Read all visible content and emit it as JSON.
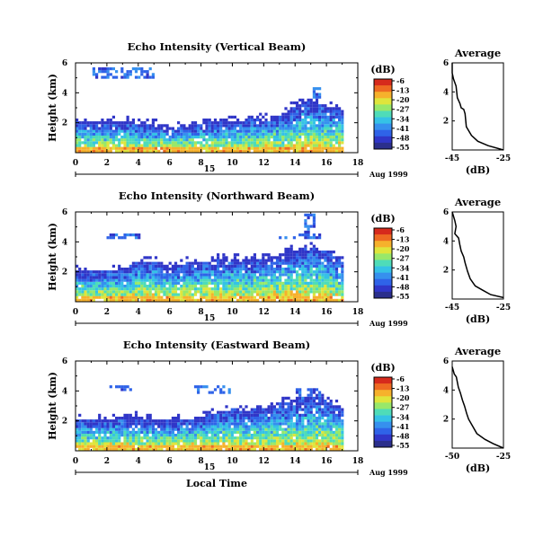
{
  "labels": {
    "ylabel": "Height (km)",
    "xlabel": "Local Time",
    "date_label": "Aug 1999",
    "day_marker": "15",
    "colorbar_unit": "(dB)",
    "avg_title": "Average",
    "avg_xlabel": "(dB)"
  },
  "colorbar": {
    "ticks": [
      "-6",
      "-13",
      "-20",
      "-27",
      "-34",
      "-41",
      "-48",
      "-55"
    ],
    "colors": [
      "#2b2f8c",
      "#3036c8",
      "#2f63e8",
      "#3690ee",
      "#35c2e6",
      "#4fdcb8",
      "#98e86a",
      "#dfe53c",
      "#f6b12c",
      "#ee6a22",
      "#d62a1c"
    ]
  },
  "chart_data": [
    {
      "type": "heatmap",
      "title": "Echo Intensity (Vertical Beam)",
      "xlabel": "",
      "ylabel": "Height (km)",
      "xlim": [
        0,
        18
      ],
      "ylim": [
        0,
        6
      ],
      "xticks": [
        "0",
        "2",
        "4",
        "6",
        "8",
        "10",
        "12",
        "14",
        "16",
        "18"
      ],
      "yticks": [
        "2",
        "4",
        "6"
      ],
      "x_end": 17,
      "layer_top": [
        2.0,
        1.9,
        1.9,
        2.0,
        1.85,
        1.75,
        1.7,
        1.7,
        1.9,
        1.9,
        2.0,
        2.1,
        2.2,
        2.45,
        3.1,
        3.4,
        3.0,
        2.8
      ],
      "upper_patches": [
        [
          1.0,
          5.0,
          4.8,
          5.7
        ],
        [
          3.2,
          4.6,
          5.2,
          5.7
        ],
        [
          14.2,
          15.4,
          2.3,
          3.1
        ],
        [
          15.0,
          15.6,
          3.6,
          4.3
        ]
      ],
      "cbar_range": [
        -55,
        -6
      ],
      "avg_profile": {
        "title": "Average",
        "xlabel": "(dB)",
        "xlim": [
          -45,
          -25
        ],
        "xticks": [
          "-45",
          "-25"
        ],
        "yticks": [
          "2",
          "4",
          "6"
        ],
        "x": [
          -45,
          -45,
          -44.5,
          -43.5,
          -43,
          -42,
          -41.5,
          -40.5,
          -40,
          -39.5,
          -37.5,
          -35,
          -31,
          -25
        ],
        "y": [
          6.0,
          5.3,
          4.9,
          4.4,
          3.6,
          3.2,
          2.9,
          2.8,
          2.5,
          1.6,
          1.0,
          0.6,
          0.3,
          0.0
        ]
      }
    },
    {
      "type": "heatmap",
      "title": "Echo Intensity (Northward Beam)",
      "xlabel": "",
      "ylabel": "Height (km)",
      "xlim": [
        0,
        18
      ],
      "ylim": [
        0,
        6
      ],
      "xticks": [
        "0",
        "2",
        "4",
        "6",
        "8",
        "10",
        "12",
        "14",
        "16",
        "18"
      ],
      "yticks": [
        "2",
        "4",
        "6"
      ],
      "x_end": 17,
      "layer_top": [
        2.0,
        1.9,
        2.0,
        2.1,
        2.6,
        2.6,
        2.2,
        2.5,
        2.6,
        2.7,
        2.8,
        2.7,
        2.8,
        3.0,
        3.4,
        3.6,
        3.2,
        2.6
      ],
      "upper_patches": [
        [
          1.8,
          4.0,
          4.1,
          4.4
        ],
        [
          12.8,
          15.8,
          4.0,
          4.5
        ],
        [
          14.4,
          15.2,
          4.3,
          5.8
        ]
      ],
      "cbar_range": [
        -55,
        -6
      ],
      "avg_profile": {
        "title": "Average",
        "xlabel": "(dB)",
        "xlim": [
          -45,
          -25
        ],
        "xticks": [
          "-45",
          "-25"
        ],
        "yticks": [
          "2",
          "4",
          "6"
        ],
        "x": [
          -45,
          -44,
          -43.5,
          -44,
          -42.5,
          -42,
          -41.5,
          -40.5,
          -40,
          -39,
          -38,
          -36,
          -33,
          -30,
          -25
        ],
        "y": [
          6.0,
          5.4,
          5.0,
          4.5,
          4.2,
          3.7,
          3.3,
          2.9,
          2.5,
          1.9,
          1.4,
          0.9,
          0.6,
          0.3,
          0.1
        ]
      }
    },
    {
      "type": "heatmap",
      "title": "Echo Intensity (Eastward Beam)",
      "xlabel": "Local Time",
      "ylabel": "Height (km)",
      "xlim": [
        0,
        18
      ],
      "ylim": [
        0,
        6
      ],
      "xticks": [
        "0",
        "2",
        "4",
        "6",
        "8",
        "10",
        "12",
        "14",
        "16",
        "18"
      ],
      "yticks": [
        "2",
        "4",
        "6"
      ],
      "x_end": 17,
      "layer_top": [
        2.0,
        1.9,
        2.0,
        2.2,
        2.1,
        2.0,
        1.9,
        2.0,
        2.2,
        2.5,
        2.7,
        2.6,
        2.8,
        3.1,
        3.3,
        3.6,
        3.2,
        2.7
      ],
      "upper_patches": [
        [
          2.0,
          3.6,
          3.8,
          4.2
        ],
        [
          7.5,
          9.8,
          3.7,
          4.2
        ],
        [
          14.0,
          15.6,
          3.4,
          4.0
        ]
      ],
      "cbar_range": [
        -55,
        -6
      ],
      "avg_profile": {
        "title": "Average",
        "xlabel": "(dB)",
        "xlim": [
          -50,
          -25
        ],
        "xticks": [
          "-50",
          "-25"
        ],
        "yticks": [
          "2",
          "4",
          "6"
        ],
        "x": [
          -50,
          -49,
          -48,
          -47,
          -46,
          -45,
          -44,
          -43,
          -42,
          -40,
          -38,
          -34,
          -30,
          -25
        ],
        "y": [
          5.6,
          5.1,
          4.9,
          4.2,
          3.8,
          3.3,
          2.9,
          2.4,
          2.0,
          1.5,
          1.0,
          0.6,
          0.3,
          0.0
        ]
      }
    }
  ]
}
